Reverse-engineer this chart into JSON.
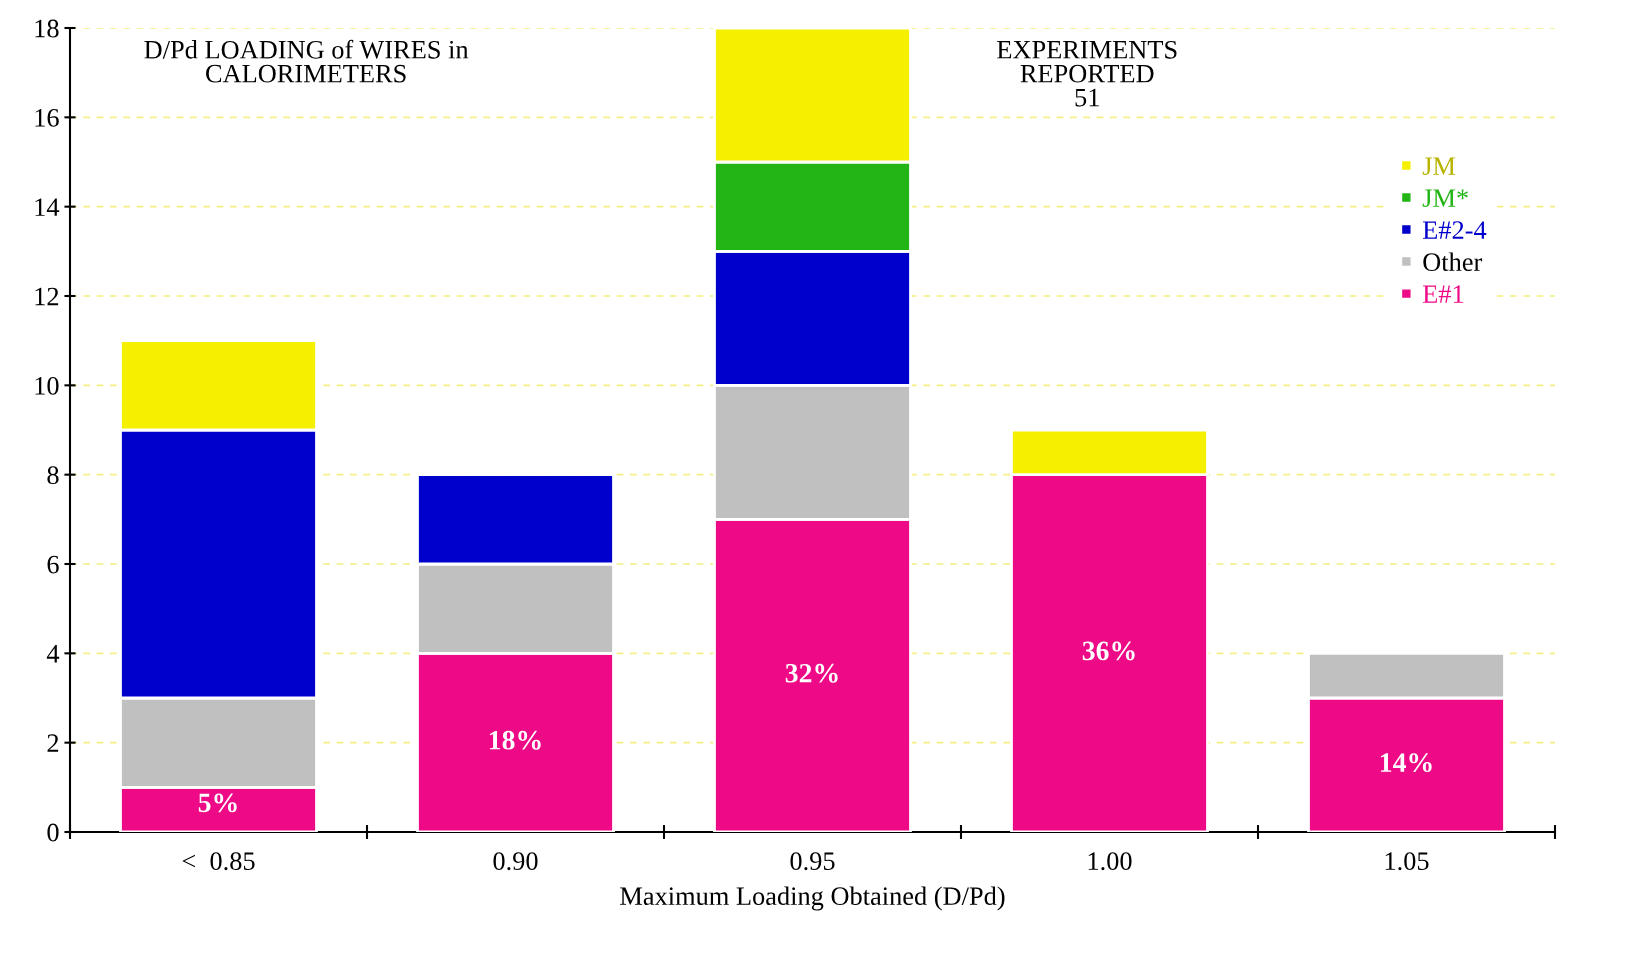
{
  "chart_data": {
    "type": "bar",
    "stacked": true,
    "title": "D/Pd LOADING of WIRES in\nCALORIMETERS",
    "xlabel": "Maximum Loading Obtained (D/Pd)",
    "annotations": [
      "EXPERIMENTS\nREPORTED\n51",
      "5%",
      "18%",
      "32%",
      "36%",
      "14%"
    ],
    "categories": [
      "<  0.85",
      "0.90",
      "0.95",
      "1.00",
      "1.05"
    ],
    "series": [
      {
        "name": "E#1",
        "color": "#ee0a87",
        "values": [
          1,
          4,
          7,
          8,
          3
        ]
      },
      {
        "name": "Other",
        "color": "#c0c0c0",
        "values": [
          2,
          2,
          3,
          null,
          1
        ]
      },
      {
        "name": "E#2-4",
        "color": "#0000cc",
        "values": [
          6,
          2,
          3,
          null,
          null
        ]
      },
      {
        "name": "JM*",
        "color": "#22b515",
        "values": [
          null,
          null,
          2,
          null,
          null
        ]
      },
      {
        "name": "JM",
        "color": "#f5ef00",
        "values": [
          2,
          null,
          3,
          1,
          null
        ]
      }
    ],
    "ylim": [
      0,
      18
    ],
    "yticks": [
      0,
      2,
      4,
      6,
      8,
      10,
      12,
      14,
      16,
      18
    ],
    "grid": "y",
    "legend": "top right"
  }
}
